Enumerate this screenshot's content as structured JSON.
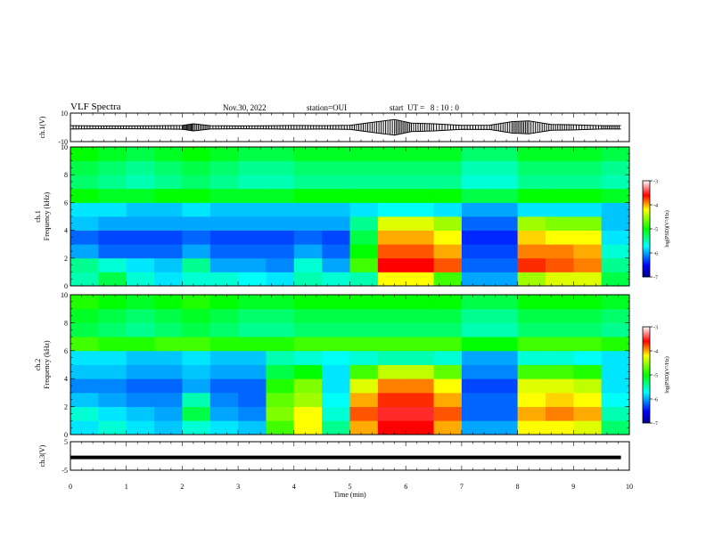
{
  "header": {
    "title": "VLF Spectra",
    "date": "Nov.30, 2022",
    "station": "station=OUI",
    "start": "start  UT =   8 : 10 : 0"
  },
  "chart_data": [
    {
      "type": "line",
      "panel": "waveform-ch1",
      "ylabel": "ch.1(V)",
      "ylim": [
        -10,
        10
      ],
      "yticks": [
        "10",
        "-10"
      ],
      "xlim": [
        0,
        10
      ],
      "x": [
        0,
        0.5,
        1,
        1.5,
        2,
        2.2,
        2.5,
        3,
        3.5,
        4,
        4.5,
        5,
        5.4,
        5.8,
        6.1,
        6.5,
        7,
        7.5,
        7.9,
        8.2,
        8.6,
        9,
        9.5,
        9.85
      ],
      "series": [
        {
          "values": [
            1.2,
            1.0,
            1.0,
            1.1,
            1.3,
            2.5,
            1.2,
            1.0,
            1.1,
            1.3,
            1.2,
            1.4,
            3.5,
            5.5,
            3.0,
            2.5,
            1.4,
            1.5,
            4.0,
            4.5,
            2.0,
            1.8,
            1.2,
            1.2
          ]
        }
      ]
    },
    {
      "type": "heatmap",
      "panel": "spectrogram-ch1",
      "ylabel": "ch.1\nFrequency (kHz)",
      "xlim": [
        0,
        10
      ],
      "ylim": [
        0,
        10
      ],
      "yticks": [
        "0",
        "2",
        "4",
        "6",
        "8",
        "10"
      ],
      "colorbar": {
        "label": "log(PSD)(V²/Hz)",
        "range": [
          -7,
          -3
        ],
        "ticks": [
          "-3",
          "-4",
          "-5",
          "-6",
          "-7"
        ]
      },
      "time_bins_min": [
        0,
        0.5,
        1,
        1.5,
        2,
        2.5,
        3,
        3.5,
        4,
        4.5,
        5,
        5.5,
        6,
        6.5,
        7,
        7.5,
        8,
        8.5,
        9,
        9.5
      ],
      "freq_bins_khz": [
        0.5,
        1.5,
        2.5,
        3.5,
        4.5,
        5.5,
        6.5,
        7.5,
        8.5,
        9.5
      ],
      "log_psd": [
        [
          -5.5,
          -5.2,
          -5.6,
          -5.8,
          -5.6,
          -5.6,
          -5.7,
          -5.8,
          -5.5,
          -5.6,
          -5.5,
          -4.2,
          -4.2,
          -4.8,
          -6.0,
          -6.0,
          -4.5,
          -4.3,
          -4.3,
          -5.2
        ],
        [
          -5.4,
          -5.6,
          -5.8,
          -5.9,
          -5.4,
          -6.0,
          -6.0,
          -6.1,
          -5.6,
          -6.0,
          -4.8,
          -3.6,
          -3.6,
          -3.8,
          -6.2,
          -6.2,
          -3.7,
          -3.8,
          -3.9,
          -5.4
        ],
        [
          -6.0,
          -6.2,
          -6.2,
          -6.2,
          -6.0,
          -6.2,
          -6.2,
          -6.2,
          -6.0,
          -6.2,
          -5.0,
          -3.8,
          -3.8,
          -4.0,
          -6.3,
          -6.3,
          -3.9,
          -3.9,
          -4.0,
          -5.6
        ],
        [
          -6.2,
          -6.3,
          -6.3,
          -6.3,
          -6.2,
          -6.3,
          -6.3,
          -6.3,
          -6.2,
          -6.3,
          -5.2,
          -4.0,
          -4.0,
          -4.2,
          -6.4,
          -6.4,
          -4.1,
          -4.2,
          -4.2,
          -5.8
        ],
        [
          -5.9,
          -6.0,
          -6.0,
          -6.0,
          -6.0,
          -6.0,
          -6.0,
          -6.0,
          -6.0,
          -6.0,
          -5.4,
          -4.3,
          -4.3,
          -4.5,
          -6.2,
          -6.2,
          -4.5,
          -4.6,
          -4.6,
          -5.9
        ],
        [
          -5.8,
          -5.8,
          -5.9,
          -5.9,
          -5.8,
          -5.9,
          -5.9,
          -5.9,
          -5.9,
          -5.9,
          -5.8,
          -5.7,
          -5.7,
          -5.8,
          -6.0,
          -6.0,
          -5.8,
          -5.8,
          -5.8,
          -5.9
        ],
        [
          -5.0,
          -5.1,
          -5.1,
          -5.0,
          -5.0,
          -5.1,
          -5.1,
          -5.1,
          -5.0,
          -5.0,
          -5.0,
          -5.0,
          -5.0,
          -5.0,
          -5.2,
          -5.2,
          -5.0,
          -5.0,
          -5.0,
          -5.1
        ],
        [
          -5.3,
          -5.4,
          -5.5,
          -5.4,
          -5.3,
          -5.4,
          -5.5,
          -5.5,
          -5.4,
          -5.4,
          -5.4,
          -5.4,
          -5.4,
          -5.4,
          -5.6,
          -5.6,
          -5.4,
          -5.4,
          -5.4,
          -5.5
        ],
        [
          -5.2,
          -5.3,
          -5.4,
          -5.3,
          -5.2,
          -5.3,
          -5.4,
          -5.4,
          -5.3,
          -5.3,
          -5.3,
          -5.3,
          -5.3,
          -5.3,
          -5.5,
          -5.5,
          -5.3,
          -5.3,
          -5.3,
          -5.4
        ],
        [
          -5.0,
          -5.1,
          -5.2,
          -5.1,
          -5.0,
          -5.1,
          -5.2,
          -5.2,
          -5.1,
          -5.1,
          -5.1,
          -5.1,
          -5.1,
          -5.1,
          -5.3,
          -5.3,
          -5.1,
          -5.1,
          -5.1,
          -5.2
        ]
      ]
    },
    {
      "type": "heatmap",
      "panel": "spectrogram-ch2",
      "ylabel": "ch.2\nFrequency (kHz)",
      "xlim": [
        0,
        10
      ],
      "ylim": [
        0,
        10
      ],
      "yticks": [
        "0",
        "2",
        "4",
        "6",
        "8",
        "10"
      ],
      "colorbar": {
        "label": "log(PSD)(V²/Hz)",
        "range": [
          -7,
          -3
        ],
        "ticks": [
          "-3",
          "-4",
          "-5",
          "-6",
          "-7"
        ]
      },
      "time_bins_min": [
        0,
        0.5,
        1,
        1.5,
        2,
        2.5,
        3,
        3.5,
        4,
        4.5,
        5,
        5.5,
        6,
        6.5,
        7,
        7.5,
        8,
        8.5,
        9,
        9.5
      ],
      "freq_bins_khz": [
        0.5,
        1.5,
        2.5,
        3.5,
        4.5,
        5.5,
        6.5,
        7.5,
        8.5,
        9.5
      ],
      "log_psd": [
        [
          -5.8,
          -5.6,
          -5.8,
          -5.9,
          -5.6,
          -5.8,
          -5.9,
          -4.8,
          -4.2,
          -5.4,
          -4.0,
          -3.6,
          -3.6,
          -4.0,
          -6.0,
          -6.0,
          -4.2,
          -4.2,
          -4.3,
          -5.3
        ],
        [
          -5.6,
          -5.8,
          -5.9,
          -6.0,
          -5.2,
          -6.0,
          -6.1,
          -4.6,
          -4.2,
          -5.6,
          -3.8,
          -3.5,
          -3.5,
          -3.8,
          -6.2,
          -6.2,
          -4.0,
          -3.9,
          -4.0,
          -5.5
        ],
        [
          -5.9,
          -6.0,
          -6.1,
          -6.1,
          -5.5,
          -6.1,
          -6.2,
          -4.7,
          -4.5,
          -5.7,
          -4.0,
          -3.7,
          -3.7,
          -4.0,
          -6.2,
          -6.2,
          -4.2,
          -4.1,
          -4.2,
          -5.7
        ],
        [
          -6.1,
          -6.1,
          -6.2,
          -6.2,
          -6.0,
          -6.2,
          -6.2,
          -4.9,
          -4.6,
          -5.8,
          -4.3,
          -3.9,
          -3.9,
          -4.2,
          -6.3,
          -6.3,
          -4.3,
          -4.3,
          -4.4,
          -5.8
        ],
        [
          -5.9,
          -5.9,
          -6.0,
          -6.0,
          -5.9,
          -6.0,
          -6.0,
          -5.2,
          -5.0,
          -5.8,
          -4.8,
          -4.4,
          -4.4,
          -4.7,
          -6.1,
          -6.1,
          -4.8,
          -4.8,
          -4.9,
          -5.8
        ],
        [
          -5.8,
          -5.8,
          -5.9,
          -5.9,
          -5.8,
          -5.9,
          -5.9,
          -5.5,
          -5.6,
          -5.7,
          -5.6,
          -5.5,
          -5.5,
          -5.6,
          -6.0,
          -6.0,
          -5.6,
          -5.6,
          -5.7,
          -5.8
        ],
        [
          -4.8,
          -4.9,
          -4.9,
          -4.8,
          -4.8,
          -4.9,
          -4.9,
          -4.9,
          -4.8,
          -4.8,
          -4.8,
          -4.8,
          -4.8,
          -4.8,
          -5.0,
          -5.0,
          -4.8,
          -4.8,
          -4.8,
          -4.9
        ],
        [
          -5.2,
          -5.3,
          -5.4,
          -5.3,
          -5.2,
          -5.3,
          -5.4,
          -5.4,
          -5.3,
          -5.3,
          -5.3,
          -5.3,
          -5.3,
          -5.3,
          -5.5,
          -5.5,
          -5.3,
          -5.3,
          -5.3,
          -5.4
        ],
        [
          -5.1,
          -5.2,
          -5.3,
          -5.2,
          -5.1,
          -5.2,
          -5.3,
          -5.3,
          -5.2,
          -5.2,
          -5.2,
          -5.2,
          -5.2,
          -5.2,
          -5.4,
          -5.4,
          -5.2,
          -5.2,
          -5.2,
          -5.3
        ],
        [
          -4.9,
          -5.0,
          -5.1,
          -5.0,
          -4.9,
          -5.0,
          -5.1,
          -5.1,
          -5.0,
          -5.0,
          -5.0,
          -5.0,
          -5.0,
          -5.0,
          -5.2,
          -5.2,
          -5.0,
          -5.0,
          -5.0,
          -5.1
        ]
      ]
    },
    {
      "type": "line",
      "panel": "waveform-ch3",
      "ylabel": "ch.3(V)",
      "ylim": [
        -5,
        5
      ],
      "yticks": [
        "5",
        "-5"
      ],
      "xlim": [
        0,
        10
      ],
      "xlabel": "Time (min)",
      "xticks": [
        "0",
        "1",
        "2",
        "3",
        "4",
        "5",
        "6",
        "7",
        "8",
        "9",
        "10"
      ],
      "x": [
        0,
        9.85
      ],
      "series": [
        {
          "values": [
            -0.5,
            -0.5
          ]
        }
      ]
    }
  ]
}
